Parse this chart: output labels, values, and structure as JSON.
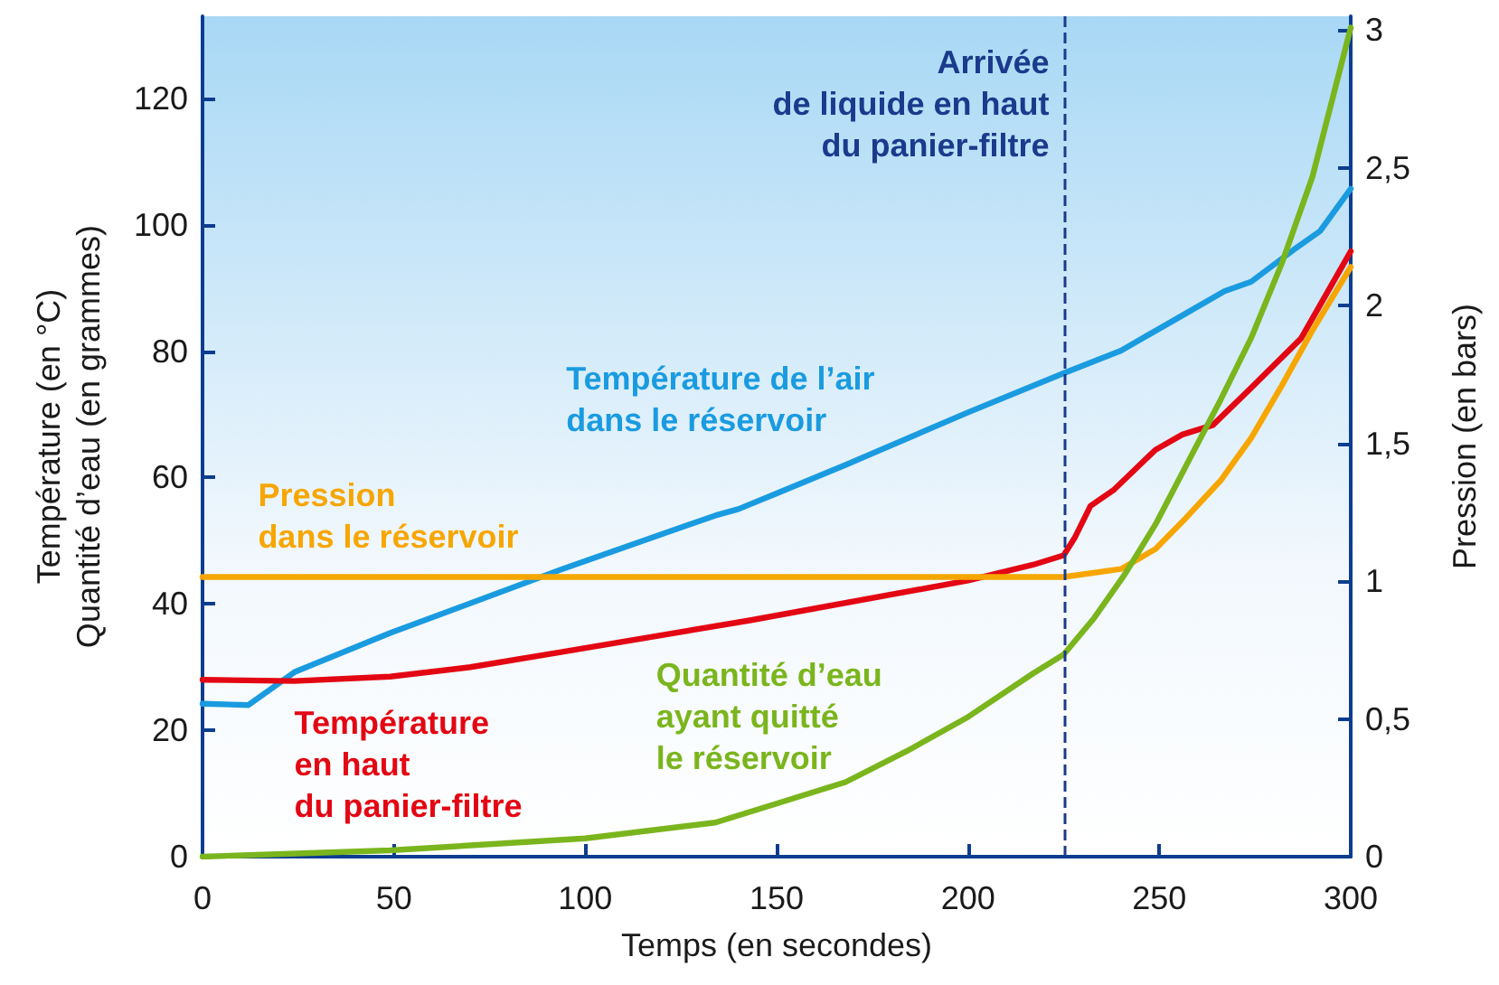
{
  "chart_data": {
    "type": "line",
    "xlabel": "Temps (en secondes)",
    "ylabel": "Température (en °C)\nQuantité d’eau (en grammes)",
    "y2label": "Pression (en bars)",
    "xlim": [
      0,
      300
    ],
    "xticks": [
      0,
      50,
      100,
      150,
      200,
      250,
      300
    ],
    "ylim": [
      0,
      133
    ],
    "yticks": [
      0,
      20,
      40,
      60,
      80,
      100,
      120
    ],
    "y2lim": [
      0,
      3.05
    ],
    "y2ticks": [
      0,
      {
        "value": 0.5,
        "label": "0,5"
      },
      1,
      {
        "value": 1.5,
        "label": "1,5"
      },
      2,
      {
        "value": 2.5,
        "label": "2,5"
      },
      3
    ],
    "grid": false,
    "legend": false,
    "line_style": "solid",
    "series": [
      {
        "name": "Température de l’air\ndans le réservoir",
        "color": "#1a9be0",
        "x": [
          0,
          12,
          24,
          49,
          94,
          134,
          140,
          150,
          168,
          200,
          225,
          240,
          257,
          267,
          274,
          285,
          292,
          300
        ],
        "values": [
          24.2,
          24,
          29.2,
          35.4,
          45.5,
          54,
          55,
          57.5,
          62,
          70.3,
          76.5,
          80.1,
          86,
          89.5,
          91,
          96,
          99,
          105.7
        ]
      },
      {
        "name": "Température\nen haut\ndu panier-filtre",
        "color": "#e30613",
        "x": [
          0,
          24,
          49,
          70,
          94,
          143,
          200,
          217,
          225,
          228,
          232,
          238,
          249,
          256,
          264,
          274,
          287,
          300
        ],
        "values": [
          28,
          27.8,
          28.5,
          30,
          32.4,
          37.4,
          43.7,
          46.2,
          47.7,
          50.6,
          55.5,
          58,
          64.4,
          66.8,
          68.3,
          74.2,
          82,
          95.8
        ]
      },
      {
        "name": "Pression\ndans le réservoir",
        "color": "#f7a600",
        "axis": "y2",
        "x": [
          0,
          225,
          240,
          249,
          257,
          266,
          274,
          282,
          290,
          300
        ],
        "values": [
          1.015,
          1.015,
          1.044,
          1.117,
          1.23,
          1.365,
          1.52,
          1.71,
          1.91,
          2.14
        ]
      },
      {
        "name": "Quantité d’eau\nayant quitté\nle réservoir",
        "color": "#7ab51d",
        "x": [
          0,
          49,
          100,
          134,
          150,
          168,
          184,
          200,
          217,
          225,
          233,
          241,
          249,
          257,
          266,
          274,
          282,
          290,
          300
        ],
        "values": [
          0,
          1,
          2.9,
          5.4,
          8.4,
          11.8,
          16.7,
          22.1,
          29,
          32,
          37.8,
          44.7,
          52.6,
          61.9,
          72.3,
          82.1,
          93.9,
          107.6,
          131.2
        ]
      }
    ],
    "ref_lines": [
      {
        "axis": "x",
        "value": 225,
        "label": "Arrivée\nde liquide en haut\ndu panier-filtre",
        "color": "#1b3a8c",
        "line_style": "dashed"
      }
    ]
  }
}
